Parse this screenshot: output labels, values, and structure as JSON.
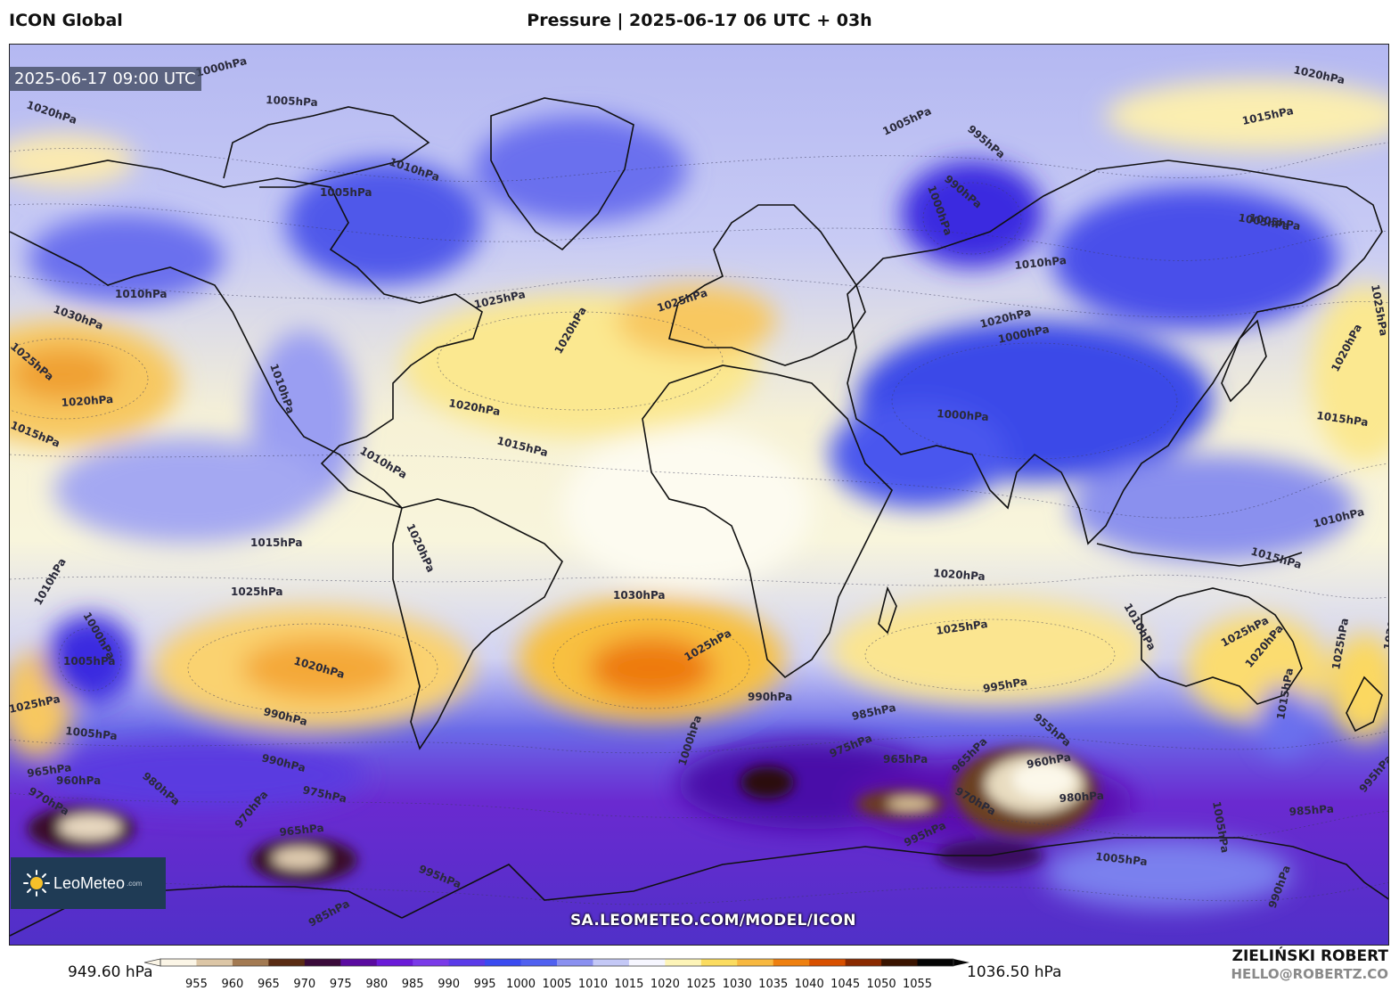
{
  "header": {
    "model_name": "ICON Global",
    "title": "Pressure | 2025-06-17 06 UTC + 03h"
  },
  "map": {
    "valid_time": "2025-06-17 09:00 UTC",
    "source_url": "SA.LEOMETEO.COM/MODEL/ICON",
    "isobar_labels": [
      "1000hPa",
      "1005hPa",
      "1020hPa",
      "1005hPa",
      "1010hPa",
      "1005hPa",
      "1010hPa",
      "1030hPa",
      "1025hPa",
      "1020hPa",
      "1015hPa",
      "1010hPa",
      "1025hPa",
      "1020hPa",
      "1025hPa",
      "1020hPa",
      "1015hPa",
      "1010hPa",
      "1015hPa",
      "1020hPa",
      "1010hPa",
      "1005hPa",
      "1000hPa",
      "1025hPa",
      "1030hPa",
      "1025hPa",
      "1020hPa",
      "1025hPa",
      "990hPa",
      "1005hPa",
      "990hPa",
      "980hPa",
      "965hPa",
      "960hPa",
      "970hPa",
      "975hPa",
      "970hPa",
      "965hPa",
      "995hPa",
      "985hPa",
      "990hPa",
      "1000hPa",
      "985hPa",
      "975hPa",
      "965hPa",
      "965hPa",
      "955hPa",
      "960hPa",
      "970hPa",
      "995hPa",
      "980hPa",
      "985hPa",
      "1005hPa",
      "1005hPa",
      "995hPa",
      "990hPa",
      "1020hPa",
      "1005hPa",
      "995hPa",
      "990hPa",
      "1000hPa",
      "1005hPa",
      "1010hPa",
      "1020hPa",
      "1000hPa",
      "1000hPa",
      "1015hPa",
      "1020hPa",
      "1025hPa",
      "1015hPa",
      "1010hPa",
      "1015hPa",
      "1010hPa",
      "1025hPa",
      "1020hPa",
      "1015hPa",
      "1025hPa",
      "1020hPa",
      "995hPa",
      "1020hPa",
      "1025hPa"
    ]
  },
  "brand": {
    "name": "LeoMeteo",
    "suffix": ".com"
  },
  "colorbar": {
    "min_label": "949.60 hPa",
    "max_label": "1036.50 hPa",
    "ticks": [
      "955",
      "960",
      "965",
      "970",
      "975",
      "980",
      "985",
      "990",
      "995",
      "1000",
      "1005",
      "1010",
      "1015",
      "1020",
      "1025",
      "1030",
      "1035",
      "1040",
      "1045",
      "1050",
      "1055"
    ],
    "colors": [
      "#fbf5e6",
      "#dcc6a6",
      "#a37a52",
      "#5a2c14",
      "#3a0a3a",
      "#5a0aa0",
      "#6a1ad8",
      "#7a3ae8",
      "#5a3ae8",
      "#3a4af0",
      "#5060f0",
      "#8a90f0",
      "#c4c8f6",
      "#f6f6ff",
      "#fdf4b8",
      "#fbdc60",
      "#f7b840",
      "#ee8010",
      "#d85000",
      "#8a2a00",
      "#3a1400",
      "#050505"
    ]
  },
  "author": {
    "name": "ZIELIŃSKI ROBERT",
    "email": "HELLO@ROBERTZ.CO"
  }
}
